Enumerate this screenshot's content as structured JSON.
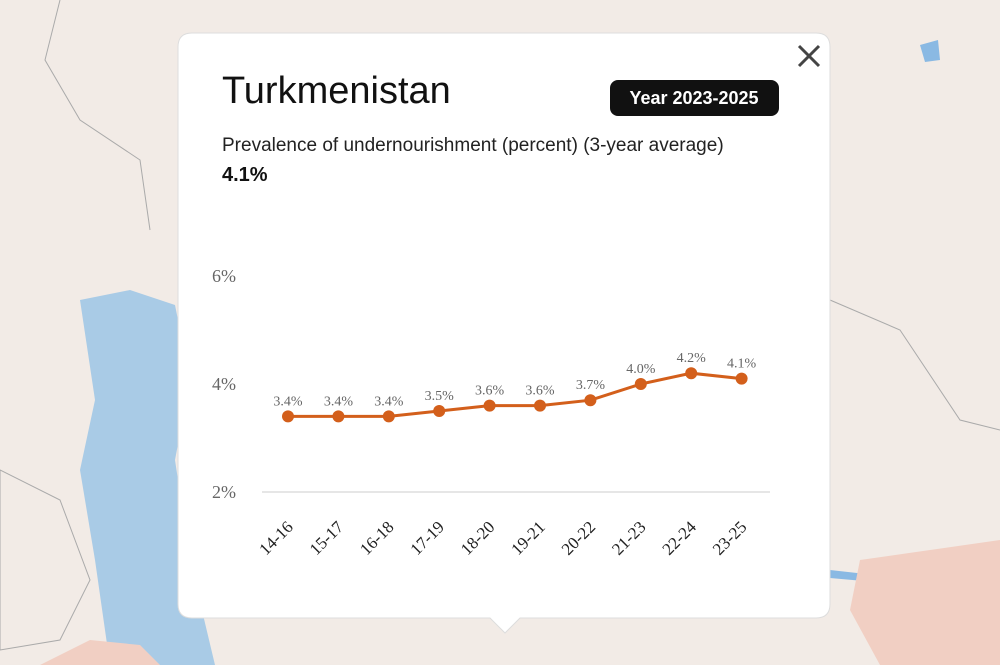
{
  "popup": {
    "title": "Turkmenistan",
    "badge": "Year 2023-2025",
    "indicator": "Prevalence of undernourishment (percent) (3-year average)",
    "value": "4.1%"
  },
  "chart_data": {
    "type": "line",
    "categories": [
      "14-16",
      "15-17",
      "16-18",
      "17-19",
      "18-20",
      "19-21",
      "20-22",
      "21-23",
      "22-24",
      "23-25"
    ],
    "series": [
      {
        "color": "#d35f1b",
        "values": [
          3.4,
          3.4,
          3.4,
          3.5,
          3.6,
          3.6,
          3.7,
          4.0,
          4.2,
          4.1
        ],
        "value_labels": [
          "3.4%",
          "3.4%",
          "3.4%",
          "3.5%",
          "3.6%",
          "3.6%",
          "3.7%",
          "4.0%",
          "4.2%",
          "4.1%"
        ]
      }
    ],
    "ylim": [
      2,
      6
    ],
    "yticks": [
      {
        "value": 2,
        "label": "2%"
      },
      {
        "value": 4,
        "label": "4%"
      },
      {
        "value": 6,
        "label": "6%"
      }
    ],
    "grid": false
  }
}
